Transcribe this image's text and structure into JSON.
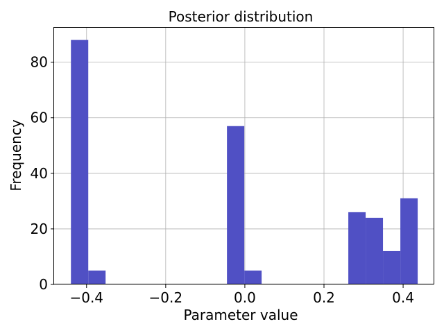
{
  "chart_data": {
    "type": "bar",
    "title": "Posterior distribution",
    "xlabel": "Parameter value",
    "ylabel": "Frequency",
    "xlim": [
      -0.482,
      0.477
    ],
    "ylim": [
      0,
      92.4
    ],
    "grid": true,
    "bar_color": "#5050c4",
    "bins": [
      {
        "x0": -0.4395,
        "x1": -0.3957,
        "count": 88
      },
      {
        "x0": -0.3957,
        "x1": -0.3519,
        "count": 5
      },
      {
        "x0": -0.0452,
        "x1": -0.0014,
        "count": 57
      },
      {
        "x0": -0.0014,
        "x1": 0.0424,
        "count": 5
      },
      {
        "x0": 0.2615,
        "x1": 0.3053,
        "count": 26
      },
      {
        "x0": 0.3053,
        "x1": 0.3491,
        "count": 24
      },
      {
        "x0": 0.3491,
        "x1": 0.393,
        "count": 12
      },
      {
        "x0": 0.393,
        "x1": 0.4368,
        "count": 31
      }
    ],
    "x_ticks": [
      {
        "value": -0.4,
        "label": "−0.4"
      },
      {
        "value": -0.2,
        "label": "−0.2"
      },
      {
        "value": 0.0,
        "label": "0.0"
      },
      {
        "value": 0.2,
        "label": "0.2"
      },
      {
        "value": 0.4,
        "label": "0.4"
      }
    ],
    "y_ticks": [
      {
        "value": 0,
        "label": "0"
      },
      {
        "value": 20,
        "label": "20"
      },
      {
        "value": 40,
        "label": "40"
      },
      {
        "value": 60,
        "label": "60"
      },
      {
        "value": 80,
        "label": "80"
      }
    ]
  }
}
